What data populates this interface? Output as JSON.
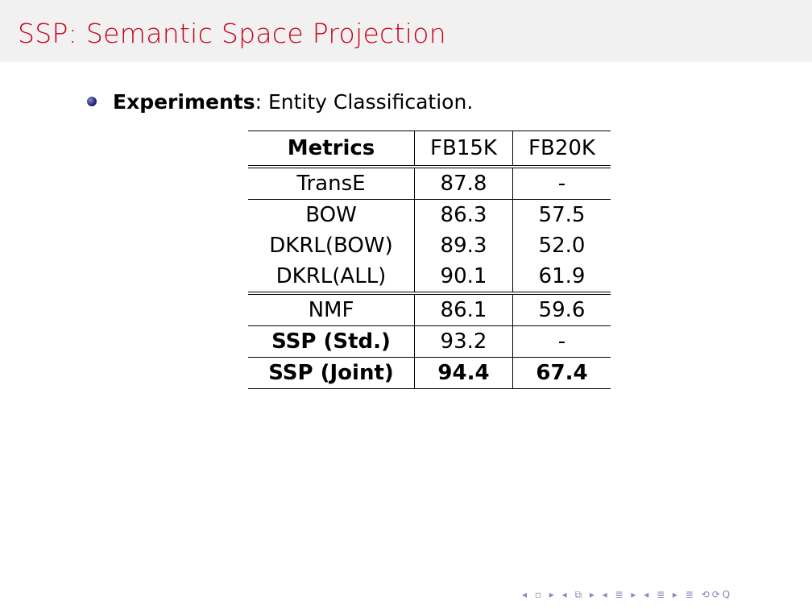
{
  "slide": {
    "title": "SSP: Semantic Space Projection",
    "bullet_bold": "Experiments",
    "bullet_rest": ": Entity Classification."
  },
  "table": {
    "headers": [
      "Metrics",
      "FB15K",
      "FB20K"
    ],
    "rows": [
      [
        "TransE",
        "87.8",
        "-"
      ],
      [
        "BOW",
        "86.3",
        "57.5"
      ],
      [
        "DKRL(BOW)",
        "89.3",
        "52.0"
      ],
      [
        "DKRL(ALL)",
        "90.1",
        "61.9"
      ],
      [
        "NMF",
        "86.1",
        "59.6"
      ],
      [
        "SSP (Std.)",
        "93.2",
        "-"
      ],
      [
        "SSP (Joint)",
        "94.4",
        "67.4"
      ]
    ]
  },
  "nav": {
    "symbols": "◂ ▫ ▸ ◂ ⧉ ▸ ◂ ≣ ▸ ◂ ≣ ▸   ≣   ⟲⟳Q"
  }
}
